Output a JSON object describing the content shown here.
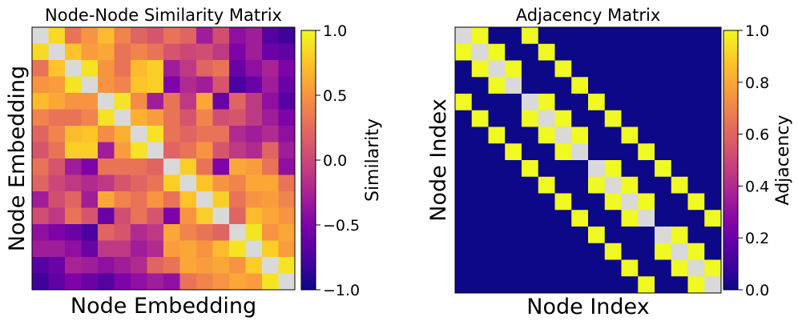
{
  "chart_data": [
    {
      "type": "heatmap",
      "title": "Node-Node Similarity Matrix",
      "xlabel": "Node Embedding",
      "ylabel": "Node Embedding",
      "colorbar": {
        "label": "Similarity",
        "range": [
          -1.0,
          1.0
        ],
        "ticks": [
          1.0,
          0.5,
          0.0,
          -0.5,
          -1.0
        ],
        "tick_labels": [
          "1.0",
          "0.5",
          "0.0",
          "−0.5",
          "−1.0"
        ],
        "colormap": "plasma"
      },
      "diagonal_color": "#d9d9d9",
      "values": [
        [
          null,
          0.85,
          0.3,
          0.5,
          0.7,
          0.4,
          0.2,
          0.1,
          0.3,
          0.2,
          -0.3,
          0.05,
          -0.4,
          -0.3,
          -0.7,
          -0.8
        ],
        [
          0.85,
          null,
          0.75,
          0.55,
          0.6,
          0.3,
          0.4,
          0.3,
          0.1,
          0.0,
          0.05,
          -0.1,
          -0.5,
          -0.3,
          -0.6,
          -0.65
        ],
        [
          0.3,
          0.75,
          null,
          0.9,
          0.5,
          0.3,
          0.7,
          0.8,
          -0.3,
          -0.1,
          0.2,
          0.3,
          -0.6,
          -0.4,
          -0.25,
          -0.5
        ],
        [
          0.5,
          0.55,
          0.9,
          null,
          0.5,
          0.4,
          0.75,
          0.8,
          -0.5,
          -0.2,
          -0.3,
          0.1,
          -0.75,
          -0.6,
          -0.3,
          -0.6
        ],
        [
          0.7,
          0.6,
          0.5,
          0.5,
          null,
          0.9,
          0.45,
          -0.3,
          0.3,
          -0.1,
          0.6,
          -0.6,
          0.2,
          -0.1,
          -0.4,
          -0.7
        ],
        [
          0.4,
          0.3,
          0.3,
          0.4,
          0.9,
          null,
          0.65,
          0.55,
          0.3,
          0.1,
          0.4,
          0.05,
          0.1,
          -0.1,
          -0.3,
          -0.5
        ],
        [
          0.2,
          0.4,
          0.7,
          0.75,
          0.45,
          0.65,
          null,
          0.9,
          0.3,
          0.2,
          0.3,
          0.3,
          -0.2,
          -0.3,
          -0.2,
          -0.4
        ],
        [
          0.1,
          0.3,
          0.8,
          0.8,
          -0.3,
          0.55,
          0.9,
          null,
          0.2,
          0.3,
          0.5,
          0.1,
          -0.1,
          -0.2,
          0.2,
          -0.3
        ],
        [
          0.3,
          0.1,
          -0.3,
          -0.5,
          0.3,
          0.3,
          0.3,
          0.2,
          null,
          0.8,
          0.3,
          -0.5,
          0.6,
          0.55,
          0.3,
          -0.4
        ],
        [
          0.2,
          0.0,
          -0.1,
          -0.2,
          -0.1,
          0.1,
          0.2,
          0.3,
          0.8,
          null,
          0.75,
          0.5,
          0.4,
          0.6,
          0.6,
          0.3
        ],
        [
          -0.3,
          0.05,
          0.2,
          -0.3,
          0.6,
          0.4,
          0.3,
          0.5,
          0.3,
          0.75,
          null,
          0.8,
          0.3,
          0.5,
          0.55,
          0.4
        ],
        [
          0.05,
          -0.1,
          0.3,
          0.1,
          -0.6,
          0.05,
          0.3,
          0.1,
          -0.5,
          0.5,
          0.8,
          null,
          0.2,
          0.7,
          0.6,
          0.5
        ],
        [
          -0.4,
          -0.5,
          -0.6,
          -0.75,
          0.2,
          0.1,
          -0.2,
          -0.1,
          0.6,
          0.4,
          0.3,
          0.2,
          null,
          0.9,
          0.5,
          0.6
        ],
        [
          -0.3,
          -0.3,
          -0.4,
          -0.6,
          -0.1,
          -0.1,
          -0.3,
          -0.2,
          0.55,
          0.6,
          0.5,
          0.7,
          0.9,
          null,
          0.8,
          0.55
        ],
        [
          -0.7,
          -0.6,
          -0.25,
          -0.3,
          -0.4,
          -0.3,
          -0.2,
          0.2,
          0.3,
          0.6,
          0.55,
          0.6,
          0.5,
          0.8,
          null,
          0.9
        ],
        [
          -0.8,
          -0.65,
          -0.5,
          -0.6,
          -0.7,
          -0.5,
          -0.4,
          -0.3,
          -0.4,
          0.3,
          0.4,
          0.5,
          0.6,
          0.55,
          0.9,
          null
        ]
      ]
    },
    {
      "type": "heatmap",
      "title": "Adjacency Matrix",
      "xlabel": "Node Index",
      "ylabel": "Node Index",
      "colorbar": {
        "label": "Adjacency",
        "range": [
          0.0,
          1.0
        ],
        "ticks": [
          1.0,
          0.8,
          0.6,
          0.4,
          0.2,
          0.0
        ],
        "tick_labels": [
          "1.0",
          "0.8",
          "0.6",
          "0.4",
          "0.2",
          "0.0"
        ],
        "colormap": "plasma"
      },
      "diagonal_color": "#d9d9d9",
      "size": 16,
      "grid_width": 4,
      "description": "4x4 grid graph: node i adjacent to i+1 within row and i+4"
    }
  ]
}
